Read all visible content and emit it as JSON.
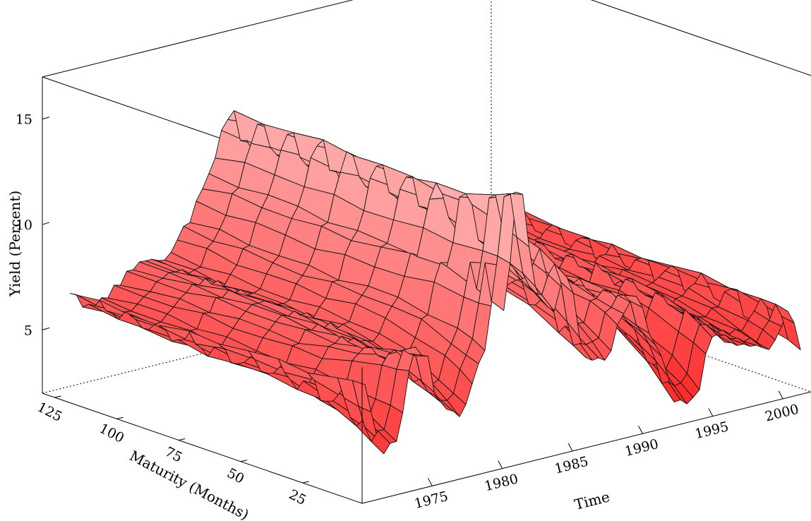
{
  "chart_data": {
    "type": "surface",
    "title": "",
    "xlabel": "Time",
    "ylabel": "Maturity (Months)",
    "zlabel": "Yield (Percent)",
    "x_ticks": [
      "1975",
      "1980",
      "1985",
      "1990",
      "1995",
      "2000"
    ],
    "y_ticks": [
      "25",
      "50",
      "75",
      "100",
      "125"
    ],
    "z_ticks": [
      "5",
      "10",
      "15"
    ],
    "x_range": [
      1970,
      2002
    ],
    "y_range": [
      1,
      130
    ],
    "z_range": [
      2,
      17
    ],
    "maturities": [
      1,
      6,
      12,
      24,
      36,
      48,
      60,
      72,
      84,
      96,
      108,
      120
    ],
    "time_knots": [
      1970.0,
      1971.5,
      1972.5,
      1973.7,
      1974.5,
      1975.5,
      1977.0,
      1978.5,
      1979.8,
      1980.3,
      1980.8,
      1981.3,
      1981.8,
      1982.5,
      1983.5,
      1984.6,
      1986.0,
      1987.5,
      1988.5,
      1989.5,
      1991.0,
      1992.5,
      1993.7,
      1995.0,
      1996.5,
      1998.0,
      1999.0,
      2000.5,
      2001.5
    ],
    "short_rate_knots": [
      7.8,
      4.2,
      4.6,
      8.6,
      8.3,
      5.8,
      5.1,
      7.4,
      11.8,
      8.2,
      14.8,
      15.2,
      12.4,
      9.8,
      8.9,
      10.5,
      6.2,
      5.9,
      7.8,
      8.6,
      6.0,
      3.1,
      3.0,
      5.8,
      5.1,
      4.9,
      4.6,
      6.1,
      3.6
    ],
    "long_rate_knots": [
      7.2,
      6.2,
      6.4,
      7.0,
      7.6,
      7.9,
      7.6,
      8.9,
      10.6,
      11.3,
      12.6,
      13.6,
      13.9,
      12.4,
      11.8,
      12.4,
      8.6,
      9.0,
      9.0,
      8.4,
      7.9,
      6.8,
      5.8,
      7.6,
      6.4,
      5.4,
      5.9,
      6.4,
      5.1
    ],
    "surface_color": "#ff4040",
    "grid": false,
    "legend": "none"
  }
}
